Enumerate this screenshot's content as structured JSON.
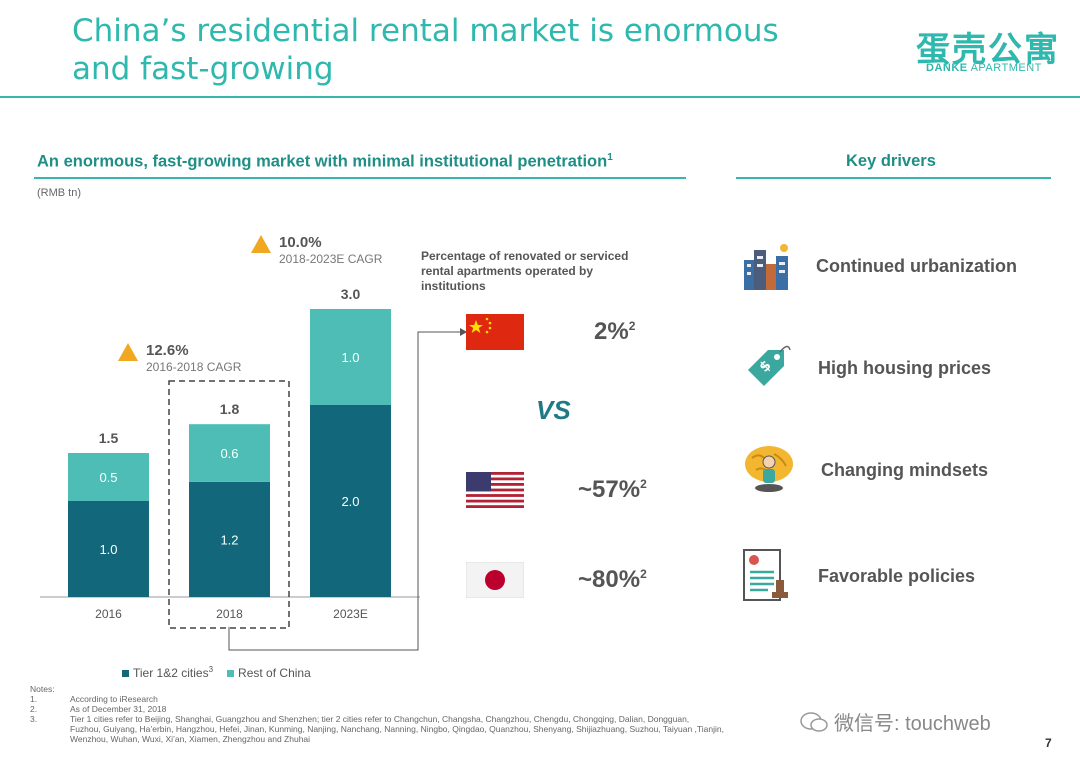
{
  "header": {
    "title_line1": "China’s residential rental market is enormous",
    "title_line2": "and fast-growing",
    "logo_cn": "蛋壳公寓",
    "logo_en_bold": "DANKE",
    "logo_en_rest": " APARTMENT"
  },
  "left_section": {
    "heading": "An enormous, fast-growing market with minimal institutional penetration",
    "heading_sup": "1",
    "unit": "(RMB tn)"
  },
  "right_section": {
    "heading": "Key drivers",
    "drivers": [
      {
        "label": "Continued urbanization",
        "icon": "city-buildings-icon"
      },
      {
        "label": "High housing prices",
        "icon": "price-tag-icon"
      },
      {
        "label": "Changing mindsets",
        "icon": "brain-person-icon"
      },
      {
        "label": "Favorable policies",
        "icon": "document-stamp-icon"
      }
    ]
  },
  "chart_data": {
    "type": "bar",
    "stacked": true,
    "categories": [
      "2016",
      "2018",
      "2023E"
    ],
    "series": [
      {
        "name": "Tier 1&2 cities",
        "name_sup": "3",
        "values": [
          1.0,
          1.2,
          2.0
        ],
        "value_labels": [
          "1.0",
          "1.2",
          "2.0"
        ],
        "color": "#12677b"
      },
      {
        "name": "Rest of China",
        "values": [
          0.5,
          0.6,
          1.0
        ],
        "value_labels": [
          "0.5",
          "0.6",
          "1.0"
        ],
        "color": "#4dbdb5"
      }
    ],
    "totals": [
      1.5,
      1.8,
      3.0
    ],
    "total_labels": [
      "1.5",
      "1.8",
      "3.0"
    ],
    "ylim": [
      0,
      3.0
    ],
    "annotations": [
      {
        "value": "12.6%",
        "label": "2016-2018 CAGR"
      },
      {
        "value": "10.0%",
        "label": "2018-2023E CAGR"
      }
    ],
    "highlight_category": "2018",
    "legend_position": "bottom-left"
  },
  "comparison": {
    "label": "Percentage of renovated or serviced rental apartments operated by institutions",
    "vs": "VS",
    "countries": [
      {
        "flag": "china-flag-icon",
        "value": "2%",
        "sup": "2"
      },
      {
        "flag": "usa-flag-icon",
        "value": "~57%",
        "sup": "2"
      },
      {
        "flag": "japan-flag-icon",
        "value": "~80%",
        "sup": "2"
      }
    ]
  },
  "notes": {
    "heading": "Notes:",
    "items": [
      {
        "num": "1.",
        "text": "According to iResearch"
      },
      {
        "num": "2.",
        "text": "As of December 31, 2018"
      },
      {
        "num": "3.",
        "text": "Tier 1 cities refer to Beijing, Shanghai, Guangzhou and Shenzhen; tier 2 cities refer to Changchun, Changsha, Changzhou, Chengdu, Chongqing, Dalian, Dongguan,"
      },
      {
        "num": "",
        "text": "Fuzhou, Guiyang, Ha’erbin, Hangzhou, Hefei, Jinan, Kunming, Nanjing, Nanchang, Nanning, Ningbo, Qingdao, Quanzhou, Shenyang, Shijiazhuang, Suzhou, Taiyuan ,Tianjin,"
      },
      {
        "num": "",
        "text": "Wenzhou, Wuhan, Wuxi, Xi’an, Xiamen, Zhengzhou and Zhuhai"
      }
    ]
  },
  "footer": {
    "watermark": "微信号: touchweb",
    "page_number": "7"
  }
}
